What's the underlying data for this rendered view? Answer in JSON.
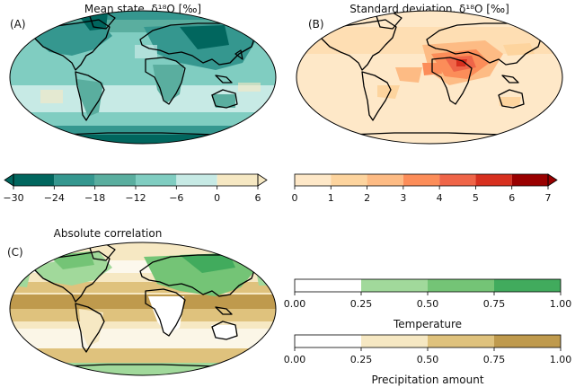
{
  "panels": {
    "a": {
      "letter": "(A)",
      "title": "Mean state, δ¹⁸O [‰]"
    },
    "b": {
      "letter": "(B)",
      "title": "Standard deviation, δ¹⁸O [‰]"
    },
    "c": {
      "letter": "(C)",
      "title": "Absolute correlation"
    }
  },
  "chart_data": [
    {
      "type": "heatmap",
      "panel": "A",
      "title": "Mean state, δ18O [‰]",
      "colorbar": {
        "bounds": [
          -30,
          -24,
          -18,
          -12,
          -6,
          0,
          6
        ],
        "tick_labels": [
          "−30",
          "−24",
          "−18",
          "−12",
          "−6",
          "0",
          "6"
        ],
        "colors": [
          "#01665e",
          "#35978f",
          "#5aae9f",
          "#80cdc1",
          "#c7eae5",
          "#f6e8c3"
        ],
        "extend": "both"
      }
    },
    {
      "type": "heatmap",
      "panel": "B",
      "title": "Standard deviation, δ18O [‰]",
      "colorbar": {
        "bounds": [
          0,
          1,
          2,
          3,
          4,
          5,
          6,
          7
        ],
        "tick_labels": [
          "0",
          "1",
          "2",
          "3",
          "4",
          "5",
          "6",
          "7"
        ],
        "colors": [
          "#fee8c8",
          "#fdd49e",
          "#fdbb84",
          "#fc8d59",
          "#ef6548",
          "#d7301f",
          "#990000"
        ],
        "extend": "max"
      }
    },
    {
      "type": "heatmap",
      "panel": "C",
      "title": "Absolute correlation",
      "colorbars": [
        {
          "label": "Temperature",
          "bounds": [
            0.0,
            0.25,
            0.5,
            0.75,
            1.0
          ],
          "tick_labels": [
            "0.00",
            "0.25",
            "0.50",
            "0.75",
            "1.00"
          ],
          "colors": [
            "#ffffff",
            "#a1d99b",
            "#74c476",
            "#41ab5d"
          ]
        },
        {
          "label": "Precipitation amount",
          "bounds": [
            0.0,
            0.25,
            0.5,
            0.75,
            1.0
          ],
          "tick_labels": [
            "0.00",
            "0.25",
            "0.50",
            "0.75",
            "1.00"
          ],
          "colors": [
            "#ffffff",
            "#f6e8c3",
            "#dfc27d",
            "#bf9a4d"
          ]
        }
      ]
    }
  ]
}
